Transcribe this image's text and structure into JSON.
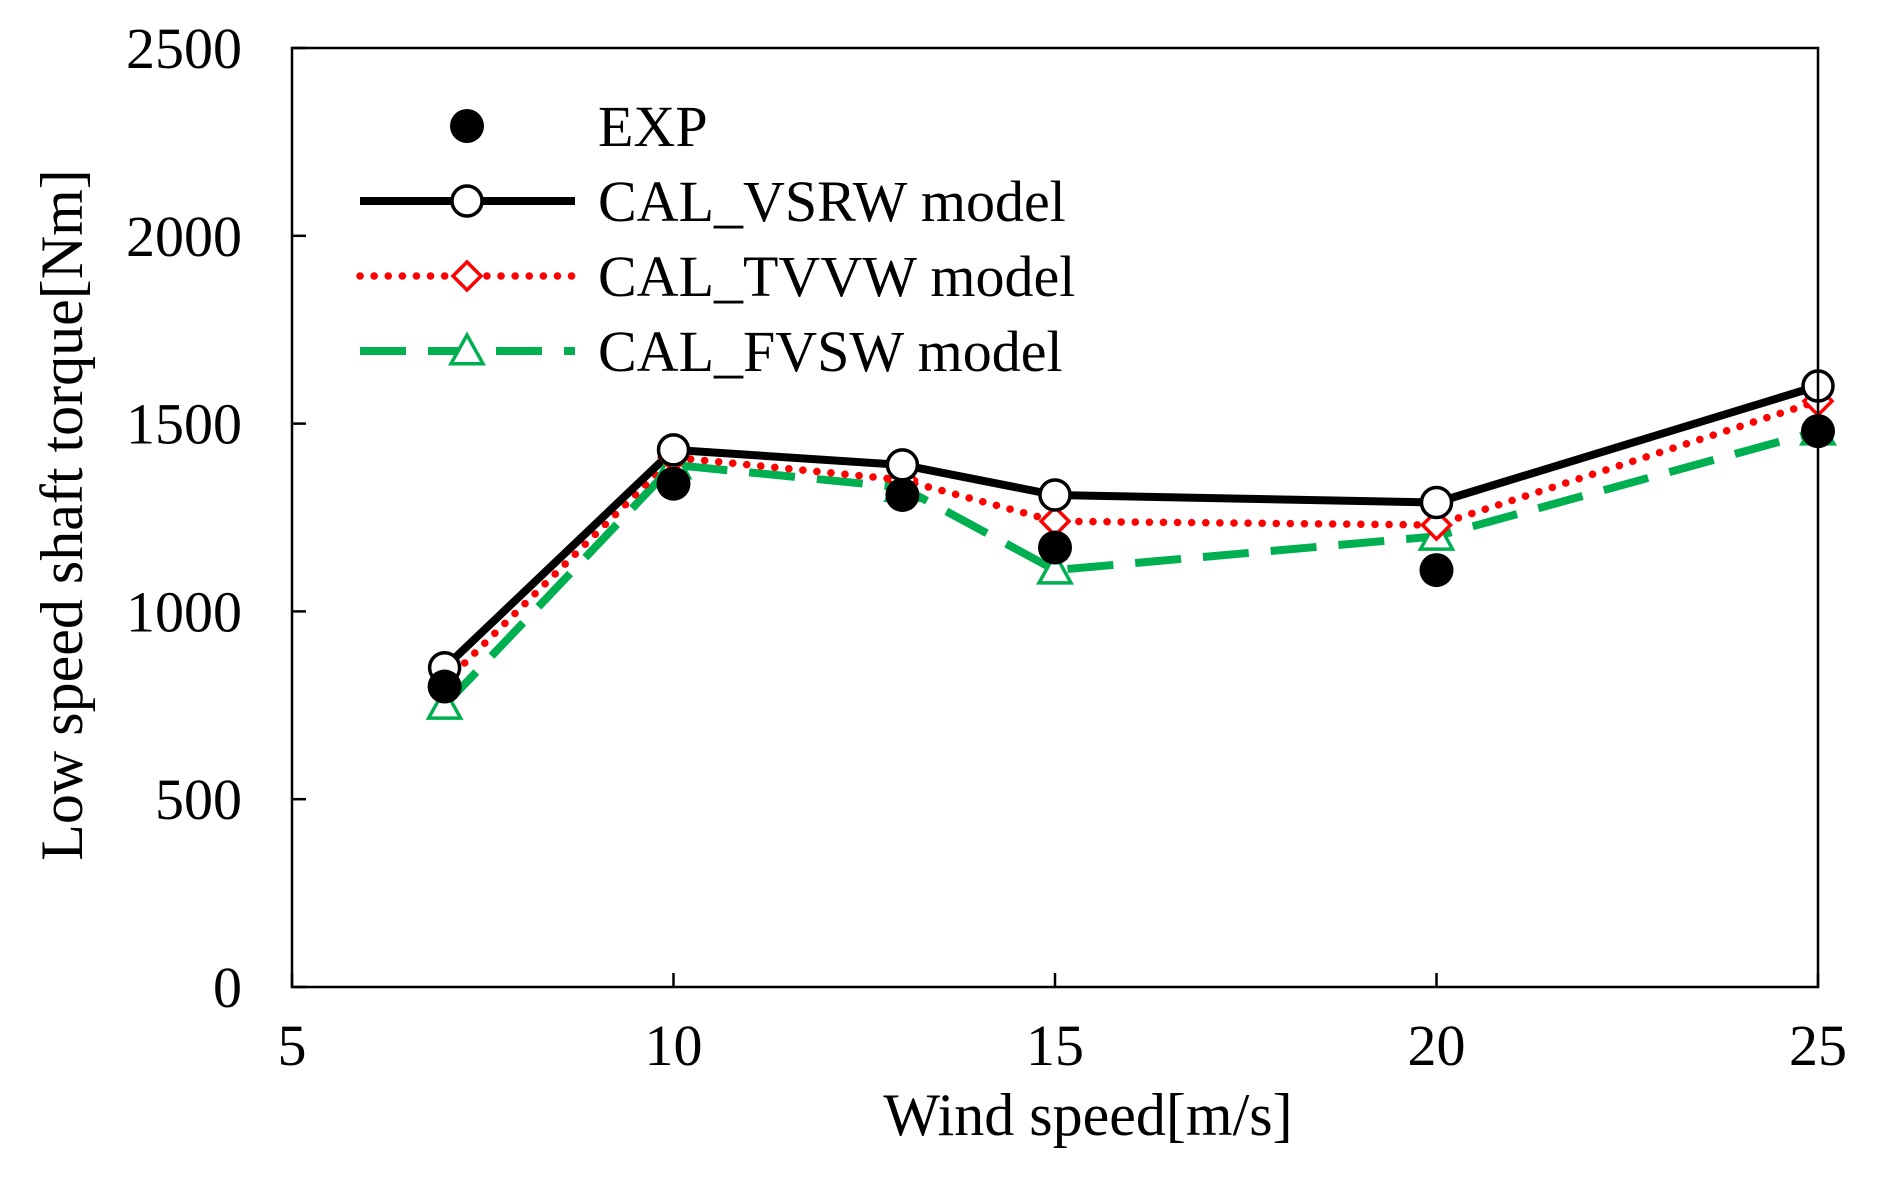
{
  "chart_data": {
    "type": "line",
    "xlabel": "Wind speed[m/s]",
    "ylabel": "Low speed shaft torque[Nm]",
    "xlim": [
      5,
      25
    ],
    "ylim": [
      0,
      2500
    ],
    "xticks": [
      "5",
      "10",
      "15",
      "20",
      "25"
    ],
    "yticks": [
      "0",
      "500",
      "1000",
      "1500",
      "2000",
      "2500"
    ],
    "grid": false,
    "legend_position": "top-left",
    "x": [
      7,
      10,
      13,
      15,
      20,
      25
    ],
    "series": [
      {
        "name": "EXP",
        "style": "markers",
        "marker": "filled-circle",
        "color": "#000000",
        "values": [
          800,
          1340,
          1310,
          1170,
          1110,
          1480
        ]
      },
      {
        "name": "CAL_VSRW model",
        "style": "solid",
        "marker": "open-circle",
        "color": "#000000",
        "values": [
          850,
          1430,
          1390,
          1310,
          1290,
          1600
        ]
      },
      {
        "name": "CAL_TVVW model",
        "style": "dotted",
        "marker": "open-diamond",
        "color": "#ff0000",
        "values": [
          810,
          1410,
          1350,
          1240,
          1230,
          1560
        ]
      },
      {
        "name": "CAL_FVSW model",
        "style": "dashed",
        "marker": "open-triangle",
        "color": "#00b050",
        "values": [
          750,
          1390,
          1330,
          1110,
          1200,
          1480
        ]
      }
    ]
  }
}
